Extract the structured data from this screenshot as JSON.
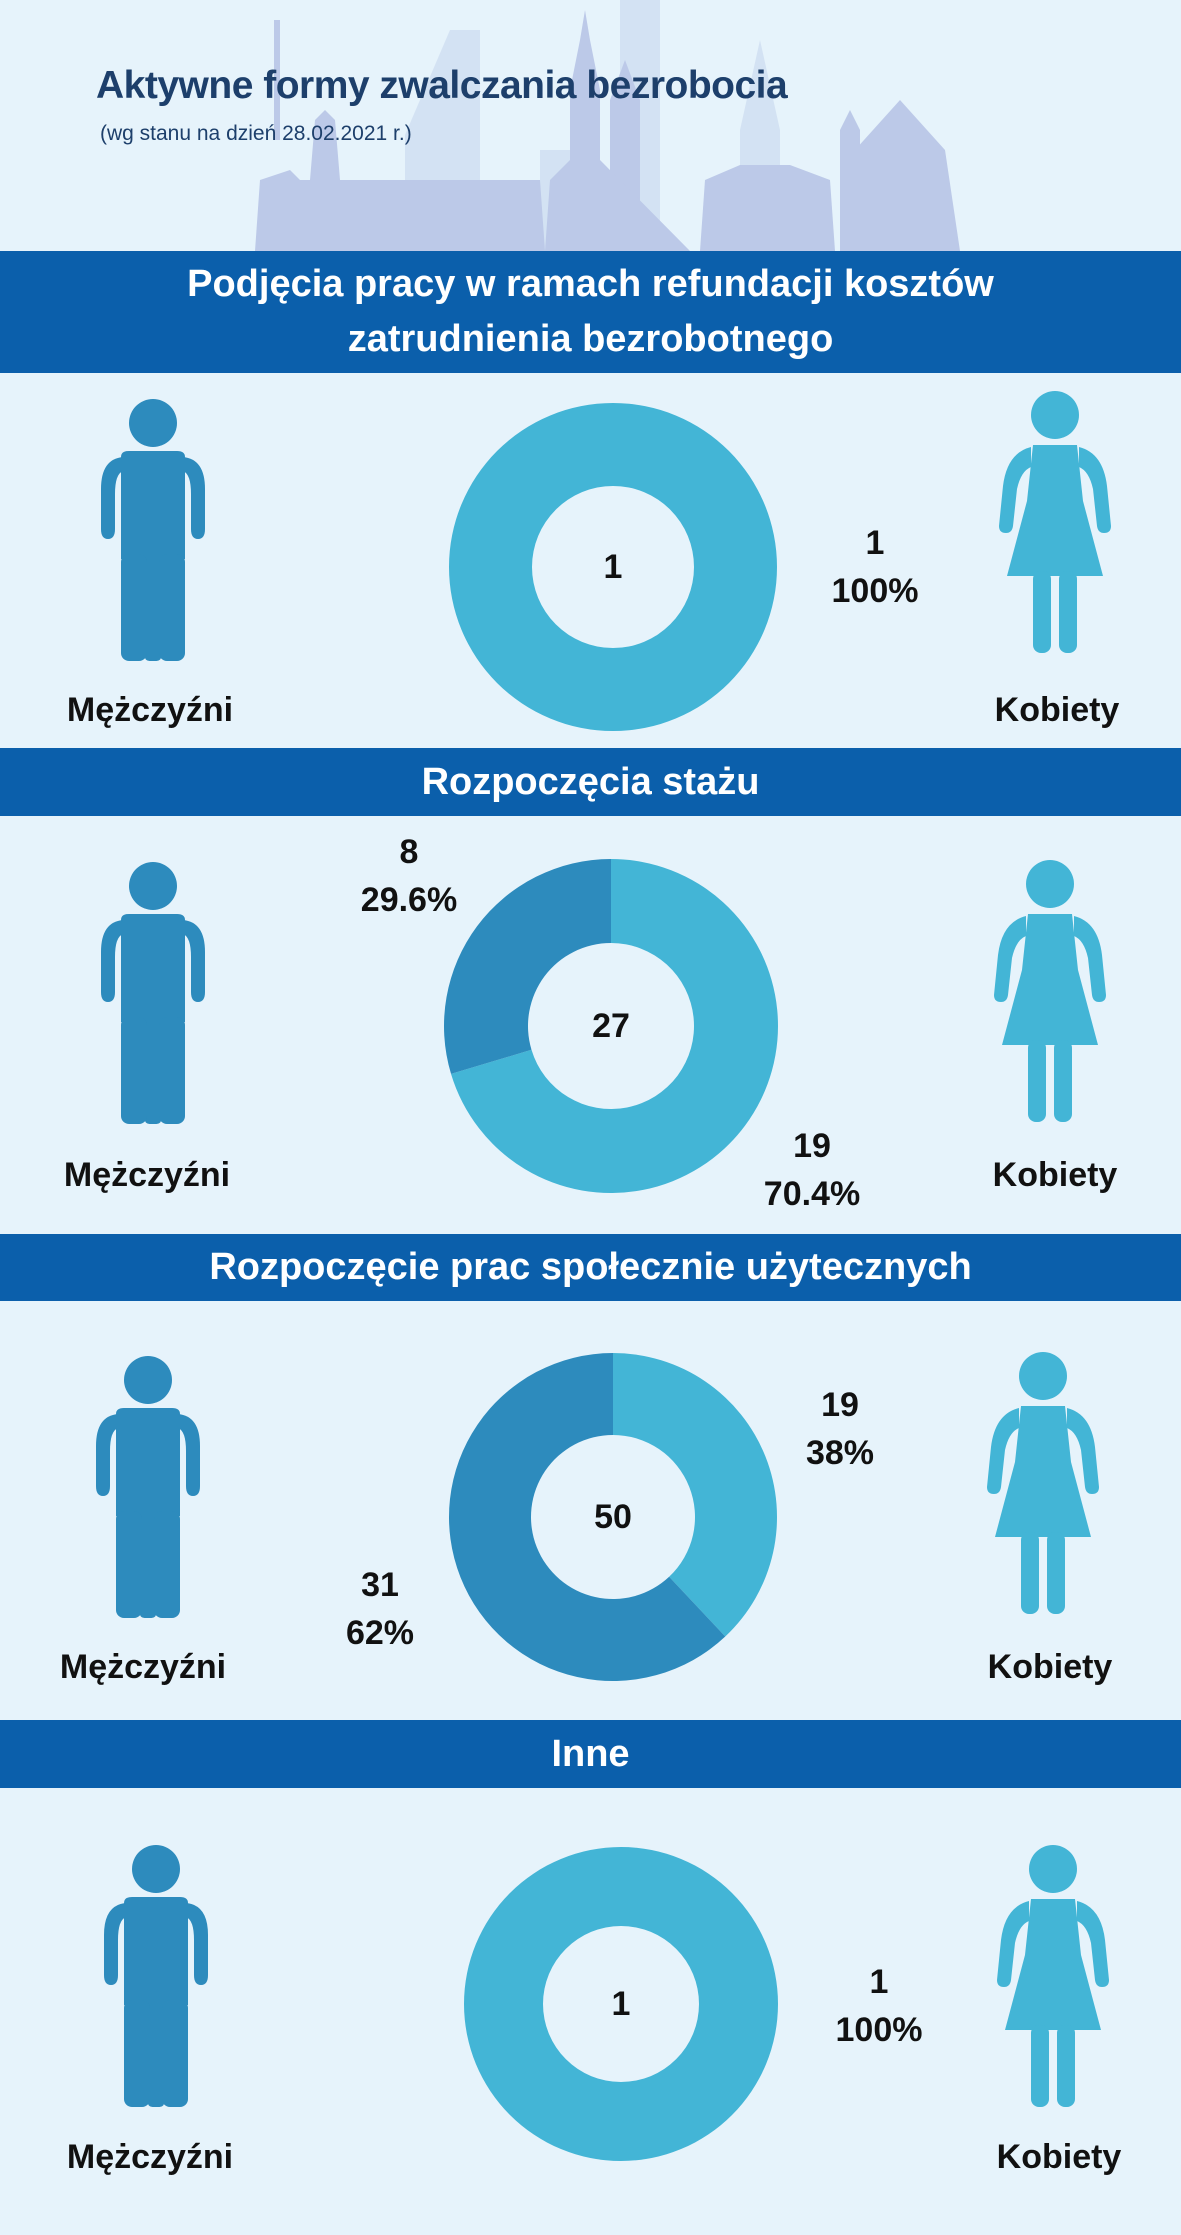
{
  "header": {
    "title": "Aktywne formy zwalczania bezrobocia",
    "subtitle": "(wg stanu na dzień 28.02.2021 r.)"
  },
  "legend": {
    "men": "Mężczyźni",
    "women": "Kobiety"
  },
  "colors": {
    "women": "#43b5d6",
    "men": "#2d8bbd",
    "banner": "#0b5fab",
    "background": "#e6f3fb"
  },
  "chart_data": [
    {
      "type": "pie",
      "title": "Podjęcia pracy w ramach refundacji kosztów zatrudnienia bezrobotnego",
      "total": "1",
      "slices": [
        {
          "name": "Kobiety",
          "value": 1,
          "count_label": "1",
          "percent_label": "100%"
        }
      ]
    },
    {
      "type": "pie",
      "title": "Rozpoczęcia stażu",
      "total": "27",
      "slices": [
        {
          "name": "Kobiety",
          "value": 19,
          "count_label": "19",
          "percent_label": "70.4%"
        },
        {
          "name": "Mężczyźni",
          "value": 8,
          "count_label": "8",
          "percent_label": "29.6%"
        }
      ]
    },
    {
      "type": "pie",
      "title": "Rozpoczęcie prac społecznie użytecznych",
      "total": "50",
      "slices": [
        {
          "name": "Kobiety",
          "value": 19,
          "count_label": "19",
          "percent_label": "38%"
        },
        {
          "name": "Mężczyźni",
          "value": 31,
          "count_label": "31",
          "percent_label": "62%"
        }
      ]
    },
    {
      "type": "pie",
      "title": "Inne",
      "total": "1",
      "slices": [
        {
          "name": "Kobiety",
          "value": 1,
          "count_label": "1",
          "percent_label": "100%"
        }
      ]
    }
  ]
}
